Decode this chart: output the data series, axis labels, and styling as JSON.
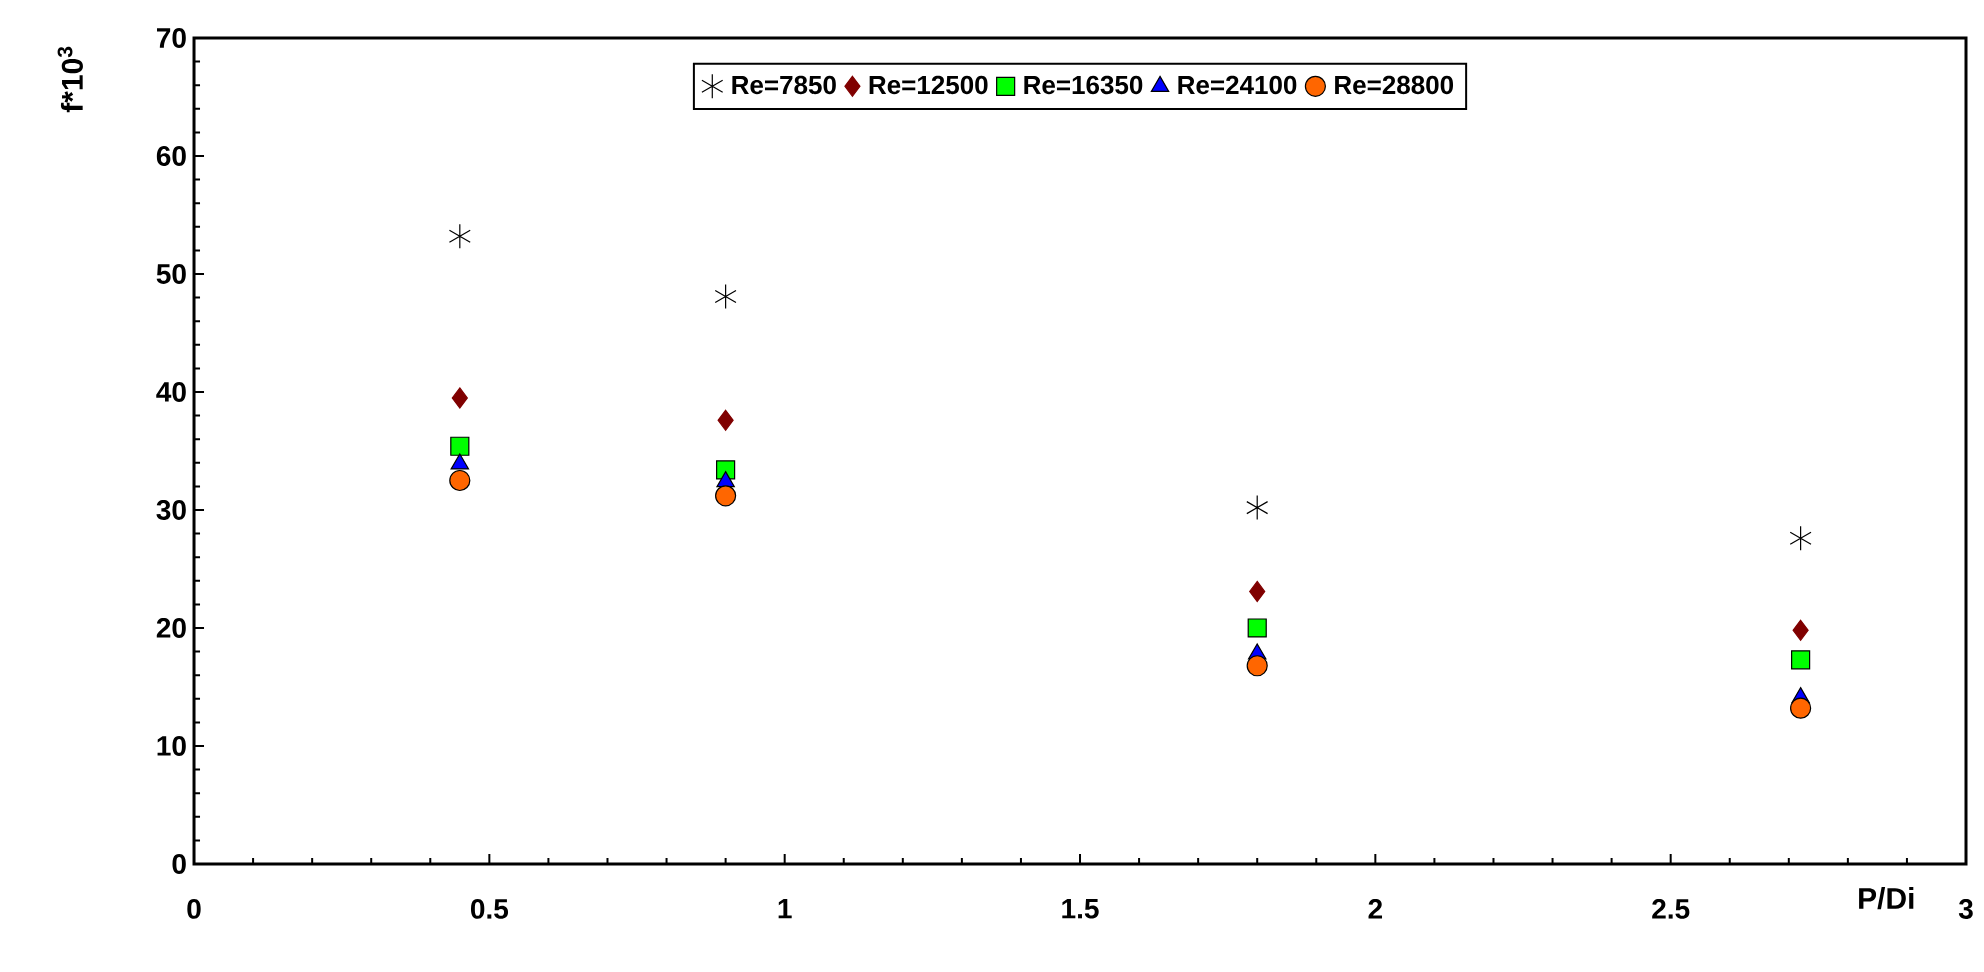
{
  "chart_data": {
    "type": "scatter",
    "xlabel": "P/Di",
    "ylabel": "f*10$^{3}$",
    "x": [
      0.45,
      0.9,
      1.8,
      2.72
    ],
    "series": [
      {
        "name": "Re=7850",
        "color": "#000000",
        "marker": "cross",
        "values": [
          53.2,
          48.1,
          30.2,
          27.6
        ]
      },
      {
        "name": "Re=12500",
        "color": "#800000",
        "marker": "diamond",
        "values": [
          39.5,
          37.6,
          23.1,
          19.8
        ]
      },
      {
        "name": "Re=16350",
        "color": "#00ff00",
        "marker": "square",
        "values": [
          35.4,
          33.4,
          20.0,
          17.3
        ]
      },
      {
        "name": "Re=24100",
        "color": "#0000ff",
        "marker": "triangle",
        "values": [
          33.9,
          32.4,
          17.8,
          14.1
        ]
      },
      {
        "name": "Re=28800",
        "color": "#ff6600",
        "marker": "circle",
        "values": [
          32.5,
          31.2,
          16.8,
          13.2
        ]
      }
    ],
    "xlim": [
      0,
      3
    ],
    "xticks": [
      0,
      0.5,
      1,
      1.5,
      2,
      2.5,
      3
    ],
    "ylim": [
      0,
      70
    ],
    "yticks": [
      0,
      10,
      20,
      30,
      40,
      50,
      60,
      70
    ],
    "grid": false,
    "legend": "top"
  }
}
